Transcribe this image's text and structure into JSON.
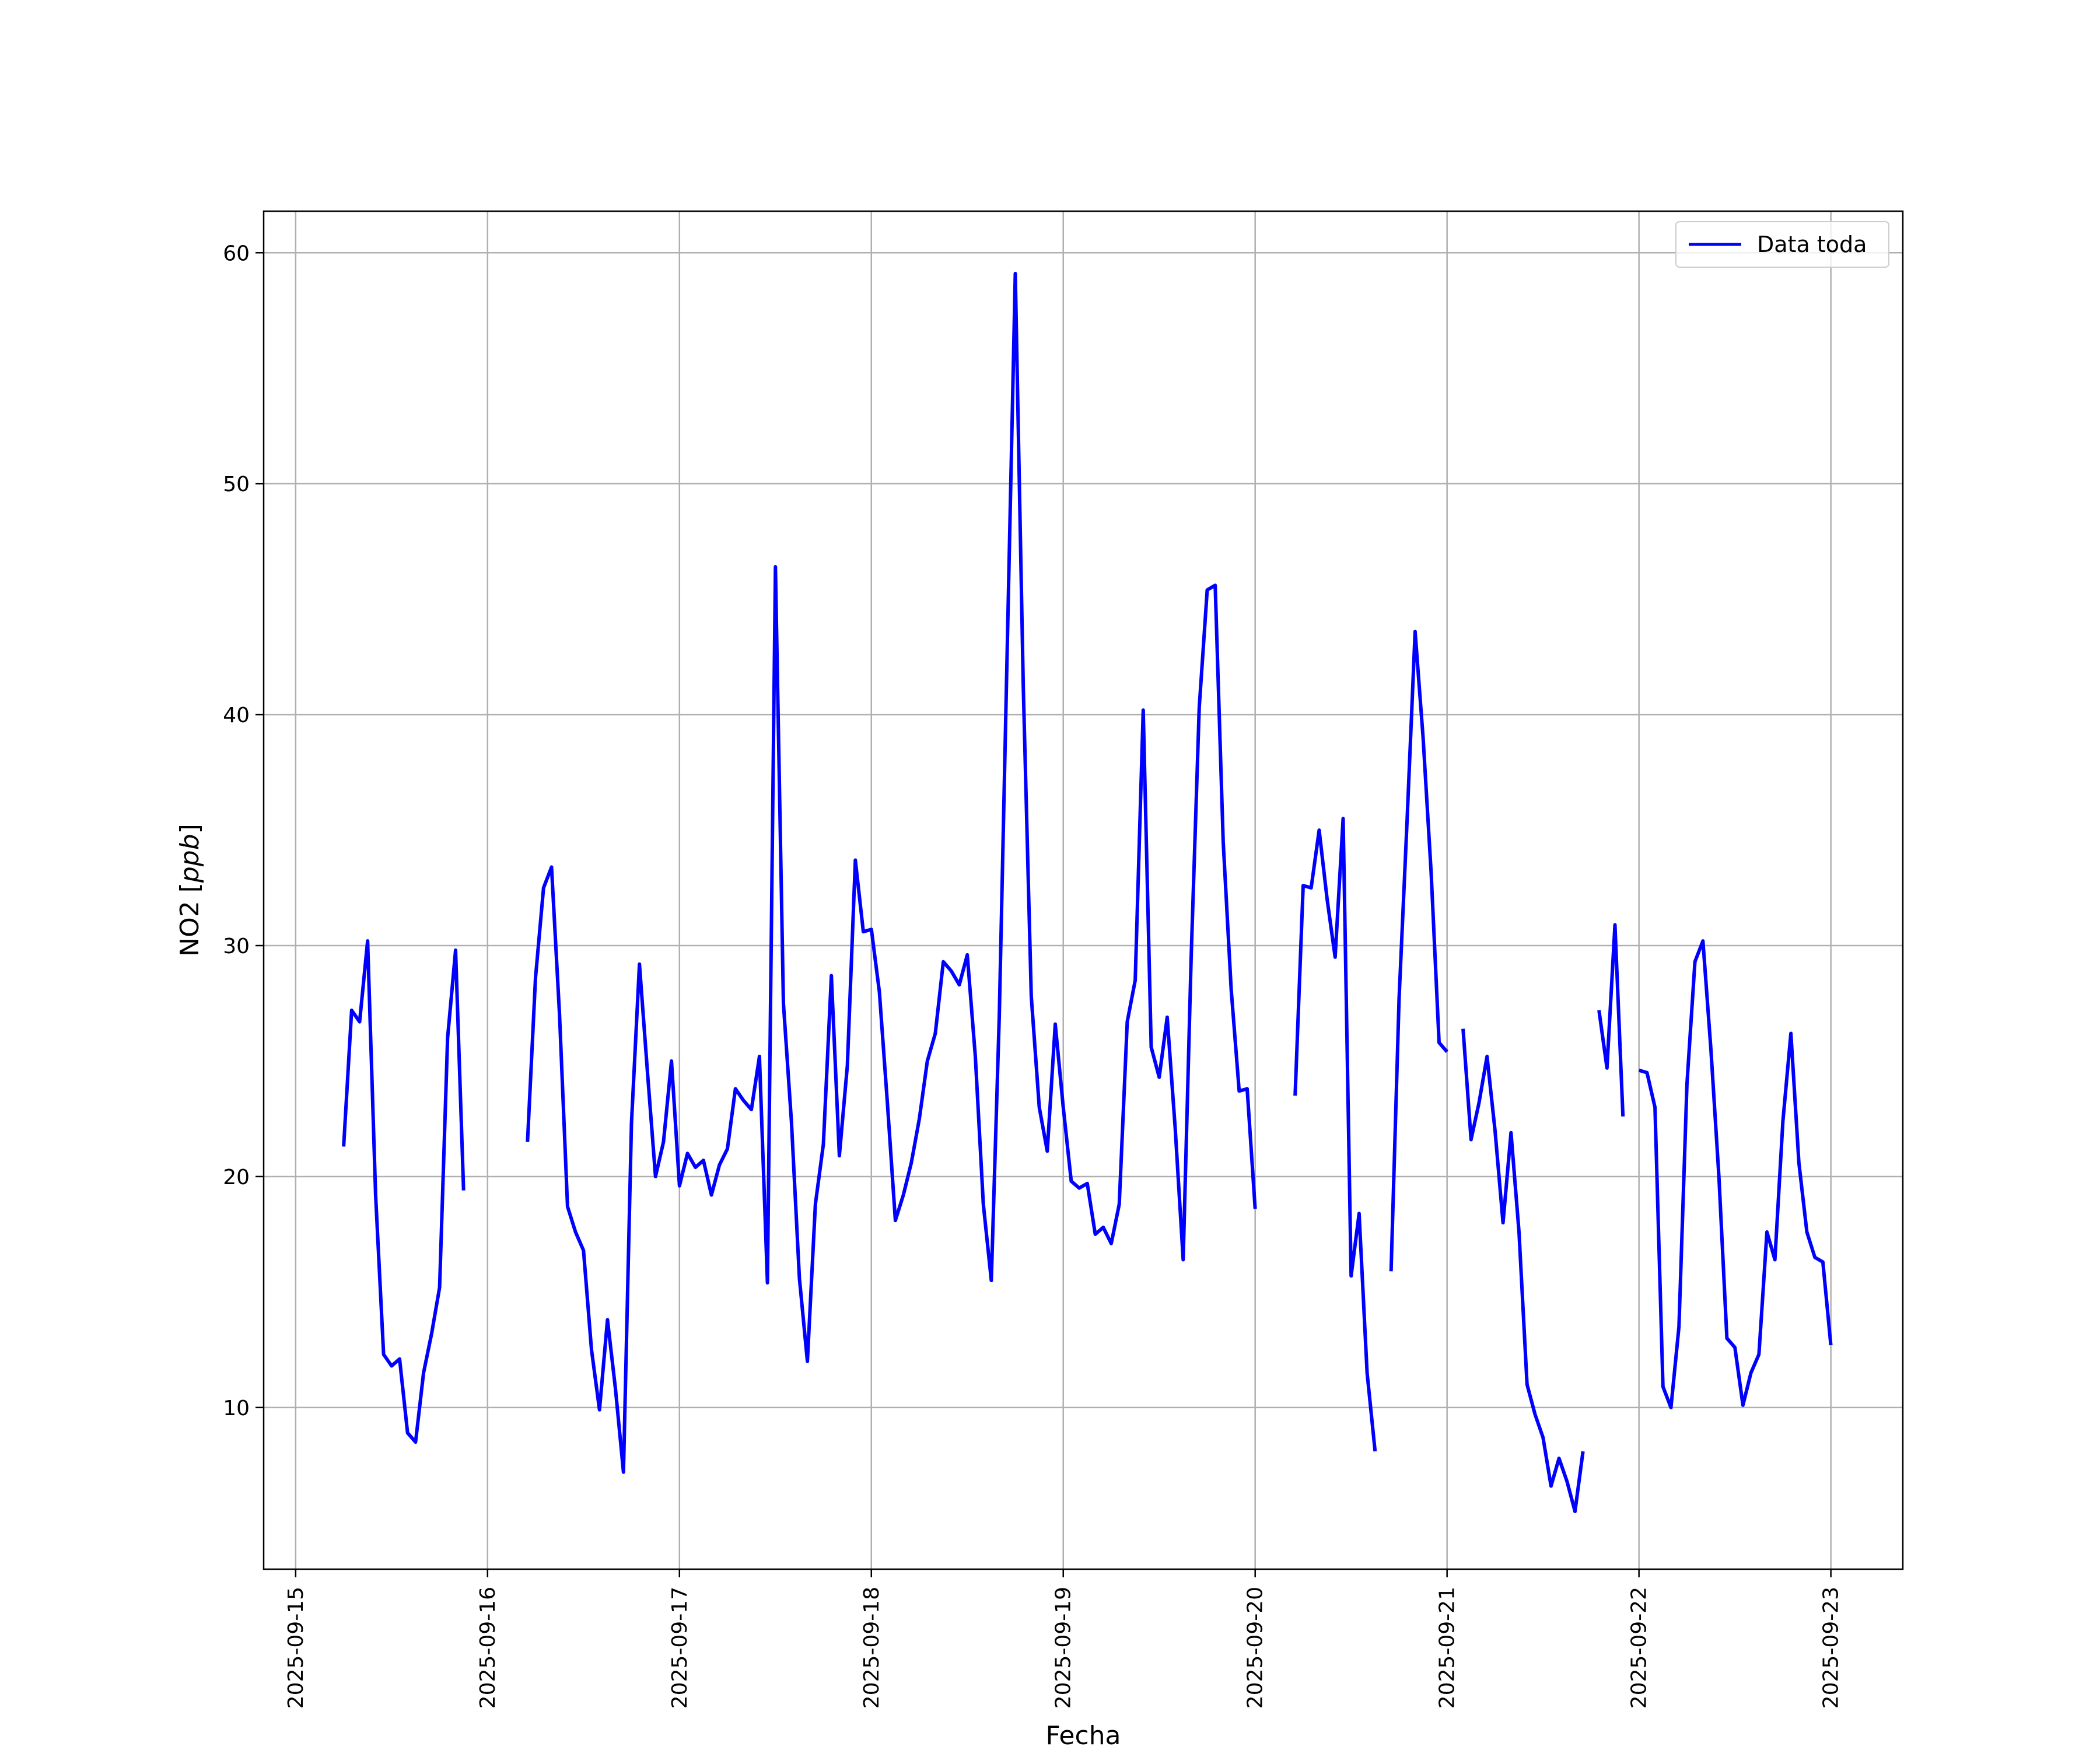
{
  "chart_data": {
    "type": "line",
    "xlabel": "Fecha",
    "ylabel_main": "NO2 [",
    "ylabel_unit": "ppb",
    "ylabel_close": "]",
    "xlim": [
      "2025-09-14T20:00",
      "2025-09-23T09:00"
    ],
    "ylim": [
      3.0,
      61.8
    ],
    "x_ticks": [
      "2025-09-15",
      "2025-09-16",
      "2025-09-17",
      "2025-09-18",
      "2025-09-19",
      "2025-09-20",
      "2025-09-21",
      "2025-09-22",
      "2025-09-23"
    ],
    "y_ticks": [
      10,
      20,
      30,
      40,
      50,
      60
    ],
    "grid": true,
    "legend_position": "top-right",
    "line_color": "#0000ff",
    "series": [
      {
        "name": "Data toda",
        "segments": [
          [
            [
              "2025-09-15T06:00",
              21.3
            ],
            [
              "2025-09-15T07:00",
              27.2
            ],
            [
              "2025-09-15T08:00",
              26.7
            ],
            [
              "2025-09-15T09:00",
              30.2
            ],
            [
              "2025-09-15T10:00",
              19.2
            ],
            [
              "2025-09-15T11:00",
              12.3
            ],
            [
              "2025-09-15T12:00",
              11.8
            ],
            [
              "2025-09-15T13:00",
              12.1
            ],
            [
              "2025-09-15T14:00",
              8.9
            ],
            [
              "2025-09-15T15:00",
              8.5
            ],
            [
              "2025-09-15T16:00",
              11.5
            ],
            [
              "2025-09-15T17:00",
              13.2
            ],
            [
              "2025-09-15T18:00",
              15.2
            ],
            [
              "2025-09-15T19:00",
              26.0
            ],
            [
              "2025-09-15T20:00",
              29.8
            ],
            [
              "2025-09-15T21:00",
              19.4
            ]
          ],
          [
            [
              "2025-09-16T05:00",
              21.5
            ],
            [
              "2025-09-16T06:00",
              28.6
            ],
            [
              "2025-09-16T07:00",
              32.5
            ],
            [
              "2025-09-16T08:00",
              33.4
            ],
            [
              "2025-09-16T09:00",
              27.0
            ],
            [
              "2025-09-16T10:00",
              18.7
            ],
            [
              "2025-09-16T11:00",
              17.6
            ],
            [
              "2025-09-16T12:00",
              16.8
            ],
            [
              "2025-09-16T13:00",
              12.5
            ],
            [
              "2025-09-16T14:00",
              9.9
            ],
            [
              "2025-09-16T15:00",
              13.8
            ],
            [
              "2025-09-16T16:00",
              10.8
            ],
            [
              "2025-09-16T17:00",
              7.2
            ],
            [
              "2025-09-16T18:00",
              22.3
            ],
            [
              "2025-09-16T19:00",
              29.2
            ],
            [
              "2025-09-16T20:00",
              24.5
            ],
            [
              "2025-09-16T21:00",
              20.0
            ],
            [
              "2025-09-16T22:00",
              21.5
            ],
            [
              "2025-09-16T23:00",
              25.0
            ],
            [
              "2025-09-17T00:00",
              19.6
            ],
            [
              "2025-09-17T01:00",
              21.0
            ],
            [
              "2025-09-17T02:00",
              20.4
            ],
            [
              "2025-09-17T03:00",
              20.7
            ],
            [
              "2025-09-17T04:00",
              19.2
            ],
            [
              "2025-09-17T05:00",
              20.5
            ],
            [
              "2025-09-17T06:00",
              21.2
            ],
            [
              "2025-09-17T07:00",
              23.8
            ],
            [
              "2025-09-17T08:00",
              23.3
            ],
            [
              "2025-09-17T09:00",
              22.9
            ],
            [
              "2025-09-17T10:00",
              25.2
            ],
            [
              "2025-09-17T11:00",
              15.4
            ],
            [
              "2025-09-17T12:00",
              46.4
            ],
            [
              "2025-09-17T13:00",
              27.5
            ],
            [
              "2025-09-17T14:00",
              22.4
            ],
            [
              "2025-09-17T15:00",
              15.6
            ],
            [
              "2025-09-17T16:00",
              12.0
            ],
            [
              "2025-09-17T17:00",
              18.8
            ],
            [
              "2025-09-17T18:00",
              21.4
            ],
            [
              "2025-09-17T19:00",
              28.7
            ],
            [
              "2025-09-17T20:00",
              20.9
            ],
            [
              "2025-09-17T21:00",
              24.8
            ],
            [
              "2025-09-17T22:00",
              33.7
            ],
            [
              "2025-09-17T23:00",
              30.6
            ],
            [
              "2025-09-18T00:00",
              30.7
            ],
            [
              "2025-09-18T01:00",
              28.0
            ],
            [
              "2025-09-18T02:00",
              23.2
            ],
            [
              "2025-09-18T03:00",
              18.1
            ],
            [
              "2025-09-18T04:00",
              19.2
            ],
            [
              "2025-09-18T05:00",
              20.6
            ],
            [
              "2025-09-18T06:00",
              22.5
            ],
            [
              "2025-09-18T07:00",
              25.0
            ],
            [
              "2025-09-18T08:00",
              26.2
            ],
            [
              "2025-09-18T09:00",
              29.3
            ],
            [
              "2025-09-18T10:00",
              28.9
            ],
            [
              "2025-09-18T11:00",
              28.3
            ],
            [
              "2025-09-18T12:00",
              29.6
            ],
            [
              "2025-09-18T13:00",
              25.2
            ],
            [
              "2025-09-18T14:00",
              18.8
            ],
            [
              "2025-09-18T15:00",
              15.5
            ],
            [
              "2025-09-18T16:00",
              27.0
            ],
            [
              "2025-09-18T17:00",
              43.0
            ],
            [
              "2025-09-18T18:00",
              59.1
            ],
            [
              "2025-09-18T19:00",
              41.2
            ],
            [
              "2025-09-18T20:00",
              27.8
            ],
            [
              "2025-09-18T21:00",
              23.0
            ],
            [
              "2025-09-18T22:00",
              21.1
            ],
            [
              "2025-09-18T23:00",
              26.6
            ],
            [
              "2025-09-19T00:00",
              23.0
            ],
            [
              "2025-09-19T01:00",
              19.8
            ],
            [
              "2025-09-19T02:00",
              19.5
            ],
            [
              "2025-09-19T03:00",
              19.7
            ],
            [
              "2025-09-19T04:00",
              17.5
            ],
            [
              "2025-09-19T05:00",
              17.8
            ],
            [
              "2025-09-19T06:00",
              17.1
            ],
            [
              "2025-09-19T07:00",
              18.8
            ],
            [
              "2025-09-19T08:00",
              26.7
            ],
            [
              "2025-09-19T09:00",
              28.5
            ],
            [
              "2025-09-19T10:00",
              40.2
            ],
            [
              "2025-09-19T11:00",
              25.6
            ],
            [
              "2025-09-19T12:00",
              24.3
            ],
            [
              "2025-09-19T13:00",
              26.9
            ],
            [
              "2025-09-19T14:00",
              22.1
            ],
            [
              "2025-09-19T15:00",
              16.4
            ],
            [
              "2025-09-19T16:00",
              29.5
            ],
            [
              "2025-09-19T17:00",
              40.3
            ],
            [
              "2025-09-19T18:00",
              45.4
            ],
            [
              "2025-09-19T19:00",
              45.6
            ],
            [
              "2025-09-19T20:00",
              34.5
            ],
            [
              "2025-09-19T21:00",
              28.1
            ],
            [
              "2025-09-19T22:00",
              23.7
            ],
            [
              "2025-09-19T23:00",
              23.8
            ],
            [
              "2025-09-20T00:00",
              18.6
            ]
          ],
          [
            [
              "2025-09-20T05:00",
              23.5
            ],
            [
              "2025-09-20T06:00",
              32.6
            ],
            [
              "2025-09-20T07:00",
              32.5
            ],
            [
              "2025-09-20T08:00",
              35.0
            ],
            [
              "2025-09-20T09:00",
              32.0
            ],
            [
              "2025-09-20T10:00",
              29.5
            ],
            [
              "2025-09-20T11:00",
              35.5
            ],
            [
              "2025-09-20T12:00",
              15.7
            ],
            [
              "2025-09-20T13:00",
              18.4
            ],
            [
              "2025-09-20T14:00",
              11.5
            ],
            [
              "2025-09-20T15:00",
              8.1
            ]
          ],
          [
            [
              "2025-09-20T17:00",
              15.9
            ],
            [
              "2025-09-20T18:00",
              27.7
            ],
            [
              "2025-09-20T19:00",
              35.4
            ],
            [
              "2025-09-20T20:00",
              43.6
            ],
            [
              "2025-09-20T21:00",
              39.0
            ],
            [
              "2025-09-20T22:00",
              33.2
            ],
            [
              "2025-09-20T23:00",
              25.8
            ],
            [
              "2025-09-21T00:00",
              25.4
            ]
          ],
          [
            [
              "2025-09-21T02:00",
              26.4
            ],
            [
              "2025-09-21T03:00",
              21.6
            ],
            [
              "2025-09-21T04:00",
              23.2
            ],
            [
              "2025-09-21T05:00",
              25.2
            ],
            [
              "2025-09-21T06:00",
              22.0
            ],
            [
              "2025-09-21T07:00",
              18.0
            ],
            [
              "2025-09-21T08:00",
              21.9
            ],
            [
              "2025-09-21T09:00",
              17.6
            ],
            [
              "2025-09-21T10:00",
              11.0
            ],
            [
              "2025-09-21T11:00",
              9.7
            ],
            [
              "2025-09-21T12:00",
              8.7
            ],
            [
              "2025-09-21T13:00",
              6.6
            ],
            [
              "2025-09-21T14:00",
              7.8
            ],
            [
              "2025-09-21T15:00",
              6.8
            ],
            [
              "2025-09-21T16:00",
              5.5
            ],
            [
              "2025-09-21T17:00",
              8.1
            ]
          ],
          [
            [
              "2025-09-21T19:00",
              27.2
            ],
            [
              "2025-09-21T20:00",
              24.7
            ],
            [
              "2025-09-21T21:00",
              30.9
            ],
            [
              "2025-09-21T22:00",
              22.6
            ]
          ],
          [
            [
              "2025-09-22T00:00",
              24.6
            ],
            [
              "2025-09-22T01:00",
              24.5
            ],
            [
              "2025-09-22T02:00",
              23.0
            ],
            [
              "2025-09-22T03:00",
              10.9
            ],
            [
              "2025-09-22T04:00",
              10.0
            ],
            [
              "2025-09-22T05:00",
              13.5
            ],
            [
              "2025-09-22T06:00",
              24.0
            ],
            [
              "2025-09-22T07:00",
              29.3
            ],
            [
              "2025-09-22T08:00",
              30.2
            ],
            [
              "2025-09-22T09:00",
              25.5
            ],
            [
              "2025-09-22T10:00",
              20.0
            ],
            [
              "2025-09-22T11:00",
              13.0
            ],
            [
              "2025-09-22T12:00",
              12.6
            ],
            [
              "2025-09-22T13:00",
              10.1
            ],
            [
              "2025-09-22T14:00",
              11.5
            ],
            [
              "2025-09-22T15:00",
              12.3
            ],
            [
              "2025-09-22T16:00",
              17.6
            ],
            [
              "2025-09-22T17:00",
              16.4
            ],
            [
              "2025-09-22T18:00",
              22.4
            ],
            [
              "2025-09-22T19:00",
              26.2
            ],
            [
              "2025-09-22T20:00",
              20.6
            ],
            [
              "2025-09-22T21:00",
              17.6
            ],
            [
              "2025-09-22T22:00",
              16.5
            ],
            [
              "2025-09-22T23:00",
              16.3
            ],
            [
              "2025-09-23T00:00",
              12.7
            ]
          ]
        ]
      }
    ]
  }
}
